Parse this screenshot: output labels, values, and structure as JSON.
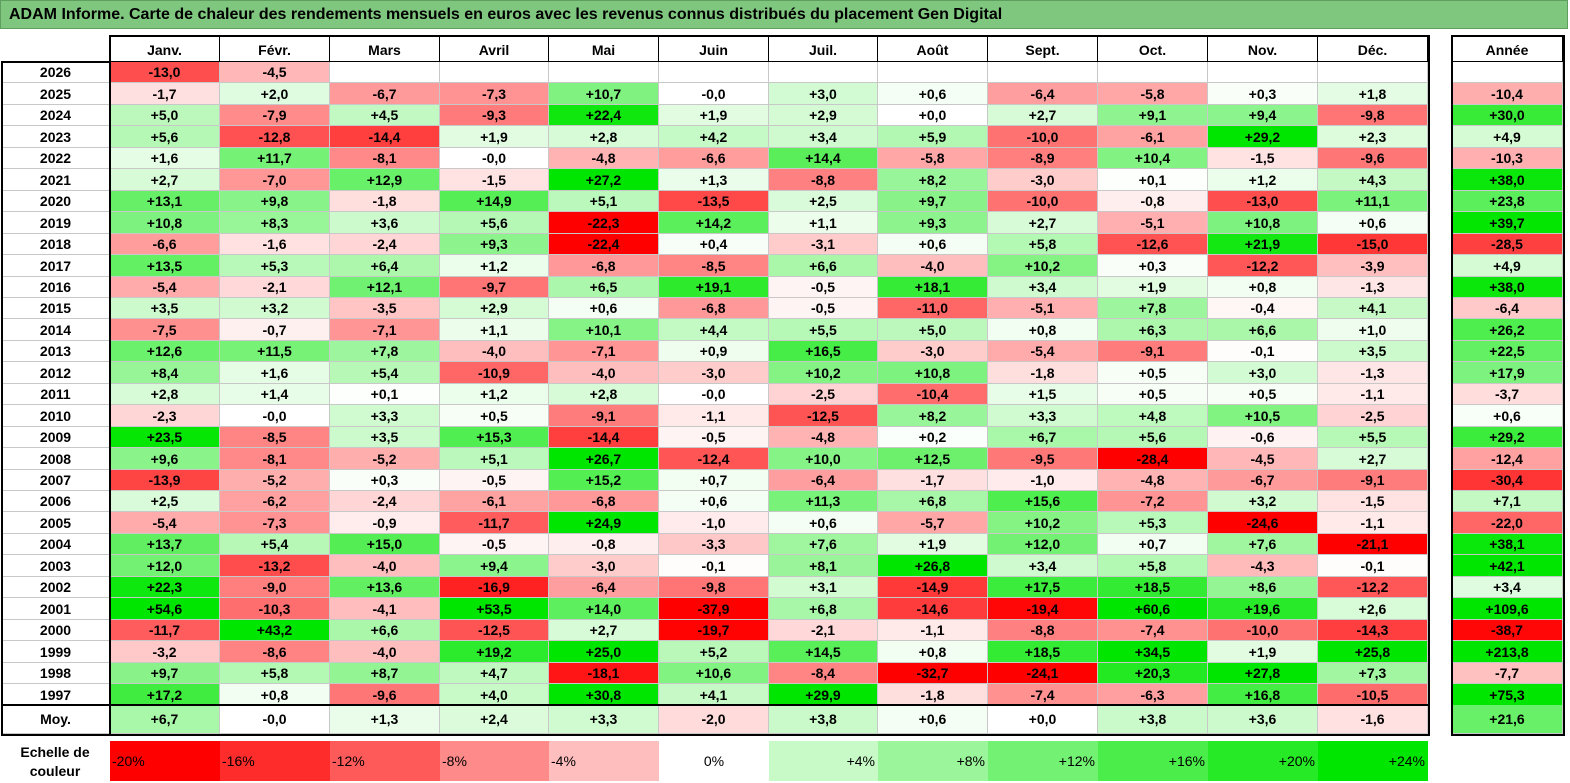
{
  "title": "ADAM Informe. Carte de chaleur des rendements mensuels en euros avec les revenus connus distribués du placement Gen Digital",
  "months": [
    "Janv.",
    "Févr.",
    "Mars",
    "Avril",
    "Mai",
    "Juin",
    "Juil.",
    "Août",
    "Sept.",
    "Oct.",
    "Nov.",
    "Déc."
  ],
  "annual_header": "Année",
  "avg_label": "Moy.",
  "scale_label": "Echelle de couleur",
  "scale": [
    "-20%",
    "-16%",
    "-12%",
    "-8%",
    "-4%",
    "0%",
    "+4%",
    "+8%",
    "+12%",
    "+16%",
    "+20%",
    "+24%"
  ],
  "colors": {
    "negative": "#ff0000",
    "positive": "#00e600",
    "neutral": "#ffffff",
    "title_bg": "#7fc77f"
  },
  "chart_data": {
    "type": "heatmap",
    "rows": [
      {
        "year": "2026",
        "months": [
          "-13,0",
          "-4,5",
          "",
          "",
          "",
          "",
          "",
          "",
          "",
          "",
          "",
          ""
        ],
        "annual": ""
      },
      {
        "year": "2025",
        "months": [
          "-1,7",
          "+2,0",
          "-6,7",
          "-7,3",
          "+10,7",
          "-0,0",
          "+3,0",
          "+0,6",
          "-6,4",
          "-5,8",
          "+0,3",
          "+1,8"
        ],
        "annual": "-10,4"
      },
      {
        "year": "2024",
        "months": [
          "+5,0",
          "-7,9",
          "+4,5",
          "-9,3",
          "+22,4",
          "+1,9",
          "+2,9",
          "+0,0",
          "+2,7",
          "+9,1",
          "+9,4",
          "-9,8"
        ],
        "annual": "+30,0"
      },
      {
        "year": "2023",
        "months": [
          "+5,6",
          "-12,8",
          "-14,4",
          "+1,9",
          "+2,8",
          "+4,2",
          "+3,4",
          "+5,9",
          "-10,0",
          "-6,1",
          "+29,2",
          "+2,3"
        ],
        "annual": "+4,9"
      },
      {
        "year": "2022",
        "months": [
          "+1,6",
          "+11,7",
          "-8,1",
          "-0,0",
          "-4,8",
          "-6,6",
          "+14,4",
          "-5,8",
          "-8,9",
          "+10,4",
          "-1,5",
          "-9,6"
        ],
        "annual": "-10,3"
      },
      {
        "year": "2021",
        "months": [
          "+2,7",
          "-7,0",
          "+12,9",
          "-1,5",
          "+27,2",
          "+1,3",
          "-8,8",
          "+8,2",
          "-3,0",
          "+0,1",
          "+1,2",
          "+4,3"
        ],
        "annual": "+38,0"
      },
      {
        "year": "2020",
        "months": [
          "+13,1",
          "+9,8",
          "-1,8",
          "+14,9",
          "+5,1",
          "-13,5",
          "+2,5",
          "+9,7",
          "-10,0",
          "-0,8",
          "-13,0",
          "+11,1"
        ],
        "annual": "+23,8"
      },
      {
        "year": "2019",
        "months": [
          "+10,8",
          "+8,3",
          "+3,6",
          "+5,6",
          "-22,3",
          "+14,2",
          "+1,1",
          "+9,3",
          "+2,7",
          "-5,1",
          "+10,8",
          "+0,6"
        ],
        "annual": "+39,7"
      },
      {
        "year": "2018",
        "months": [
          "-6,6",
          "-1,6",
          "-2,4",
          "+9,3",
          "-22,4",
          "+0,4",
          "-3,1",
          "+0,6",
          "+5,8",
          "-12,6",
          "+21,9",
          "-15,0"
        ],
        "annual": "-28,5"
      },
      {
        "year": "2017",
        "months": [
          "+13,5",
          "+5,3",
          "+6,4",
          "+1,2",
          "-6,8",
          "-8,5",
          "+6,6",
          "-4,0",
          "+10,2",
          "+0,3",
          "-12,2",
          "-3,9"
        ],
        "annual": "+4,9"
      },
      {
        "year": "2016",
        "months": [
          "-5,4",
          "-2,1",
          "+12,1",
          "-9,7",
          "+6,5",
          "+19,1",
          "-0,5",
          "+18,1",
          "+3,4",
          "+1,9",
          "+0,8",
          "-1,3"
        ],
        "annual": "+38,0"
      },
      {
        "year": "2015",
        "months": [
          "+3,5",
          "+3,2",
          "-3,5",
          "+2,9",
          "+0,6",
          "-6,8",
          "-0,5",
          "-11,0",
          "-5,1",
          "+7,8",
          "-0,4",
          "+4,1"
        ],
        "annual": "-6,4"
      },
      {
        "year": "2014",
        "months": [
          "-7,5",
          "-0,7",
          "-7,1",
          "+1,1",
          "+10,1",
          "+4,4",
          "+5,5",
          "+5,0",
          "+0,8",
          "+6,3",
          "+6,6",
          "+1,0"
        ],
        "annual": "+26,2"
      },
      {
        "year": "2013",
        "months": [
          "+12,6",
          "+11,5",
          "+7,8",
          "-4,0",
          "-7,1",
          "+0,9",
          "+16,5",
          "-3,0",
          "-5,4",
          "-9,1",
          "-0,1",
          "+3,5"
        ],
        "annual": "+22,5"
      },
      {
        "year": "2012",
        "months": [
          "+8,4",
          "+1,6",
          "+5,4",
          "-10,9",
          "-4,0",
          "-3,0",
          "+10,2",
          "+10,8",
          "-1,8",
          "+0,5",
          "+3,0",
          "-1,3"
        ],
        "annual": "+17,9"
      },
      {
        "year": "2011",
        "months": [
          "+2,8",
          "+1,4",
          "+0,1",
          "+1,2",
          "+2,8",
          "-0,0",
          "-2,5",
          "-10,4",
          "+1,5",
          "+0,5",
          "+0,5",
          "-1,1"
        ],
        "annual": "-3,7"
      },
      {
        "year": "2010",
        "months": [
          "-2,3",
          "-0,0",
          "+3,3",
          "+0,5",
          "-9,1",
          "-1,1",
          "-12,5",
          "+8,2",
          "+3,3",
          "+4,8",
          "+10,5",
          "-2,5"
        ],
        "annual": "+0,6"
      },
      {
        "year": "2009",
        "months": [
          "+23,5",
          "-8,5",
          "+3,5",
          "+15,3",
          "-14,4",
          "-0,5",
          "-4,8",
          "+0,2",
          "+6,7",
          "+5,6",
          "-0,6",
          "+5,5"
        ],
        "annual": "+29,2"
      },
      {
        "year": "2008",
        "months": [
          "+9,6",
          "-8,1",
          "-5,2",
          "+5,1",
          "+26,7",
          "-12,4",
          "+10,0",
          "+12,5",
          "-9,5",
          "-28,4",
          "-4,5",
          "+2,7"
        ],
        "annual": "-12,4"
      },
      {
        "year": "2007",
        "months": [
          "-13,9",
          "-5,2",
          "+0,3",
          "-0,5",
          "+15,2",
          "+0,7",
          "-6,4",
          "-1,7",
          "-1,0",
          "-4,8",
          "-6,7",
          "-9,1"
        ],
        "annual": "-30,4"
      },
      {
        "year": "2006",
        "months": [
          "+2,5",
          "-6,2",
          "-2,4",
          "-6,1",
          "-6,8",
          "+0,6",
          "+11,3",
          "+6,8",
          "+15,6",
          "-7,2",
          "+3,2",
          "-1,5"
        ],
        "annual": "+7,1"
      },
      {
        "year": "2005",
        "months": [
          "-5,4",
          "-7,3",
          "-0,9",
          "-11,7",
          "+24,9",
          "-1,0",
          "+0,6",
          "-5,7",
          "+10,2",
          "+5,3",
          "-24,6",
          "-1,1"
        ],
        "annual": "-22,0"
      },
      {
        "year": "2004",
        "months": [
          "+13,7",
          "+5,4",
          "+15,0",
          "-0,5",
          "-0,8",
          "-3,3",
          "+7,6",
          "+1,9",
          "+12,0",
          "+0,7",
          "+7,6",
          "-21,1"
        ],
        "annual": "+38,1"
      },
      {
        "year": "2003",
        "months": [
          "+12,0",
          "-13,2",
          "-4,0",
          "+9,4",
          "-3,0",
          "-0,1",
          "+8,1",
          "+26,8",
          "+3,4",
          "+5,8",
          "-4,3",
          "-0,1"
        ],
        "annual": "+42,1"
      },
      {
        "year": "2002",
        "months": [
          "+22,3",
          "-9,0",
          "+13,6",
          "-16,9",
          "-6,4",
          "-9,8",
          "+3,1",
          "-14,9",
          "+17,5",
          "+18,5",
          "+8,6",
          "-12,2"
        ],
        "annual": "+3,4"
      },
      {
        "year": "2001",
        "months": [
          "+54,6",
          "-10,3",
          "-4,1",
          "+53,5",
          "+14,0",
          "-37,9",
          "+6,8",
          "-14,6",
          "-19,4",
          "+60,6",
          "+19,6",
          "+2,6"
        ],
        "annual": "+109,6"
      },
      {
        "year": "2000",
        "months": [
          "-11,7",
          "+43,2",
          "+6,6",
          "-12,5",
          "+2,7",
          "-19,7",
          "-2,1",
          "-1,1",
          "-8,8",
          "-7,4",
          "-10,0",
          "-14,3"
        ],
        "annual": "-38,7"
      },
      {
        "year": "1999",
        "months": [
          "-3,2",
          "-8,6",
          "-4,0",
          "+19,2",
          "+25,0",
          "+5,2",
          "+14,5",
          "+0,8",
          "+18,5",
          "+34,5",
          "+1,9",
          "+25,8"
        ],
        "annual": "+213,8"
      },
      {
        "year": "1998",
        "months": [
          "+9,7",
          "+5,8",
          "+8,7",
          "+4,7",
          "-18,1",
          "+10,6",
          "-8,4",
          "-32,7",
          "-24,1",
          "+20,3",
          "+27,8",
          "+7,3"
        ],
        "annual": "-7,7"
      },
      {
        "year": "1997",
        "months": [
          "+17,2",
          "+0,8",
          "-9,6",
          "+4,0",
          "+30,8",
          "+4,1",
          "+29,9",
          "-1,8",
          "-7,4",
          "-6,3",
          "+16,8",
          "-10,5"
        ],
        "annual": "+75,3"
      }
    ],
    "average": {
      "months": [
        "+6,7",
        "-0,0",
        "+1,3",
        "+2,4",
        "+3,3",
        "-2,0",
        "+3,8",
        "+0,6",
        "+0,0",
        "+3,8",
        "+3,6",
        "-1,6"
      ],
      "annual": "+21,6"
    },
    "monthly_color_range": [
      -20,
      24
    ],
    "annual_color_range": [
      -40,
      40
    ]
  }
}
